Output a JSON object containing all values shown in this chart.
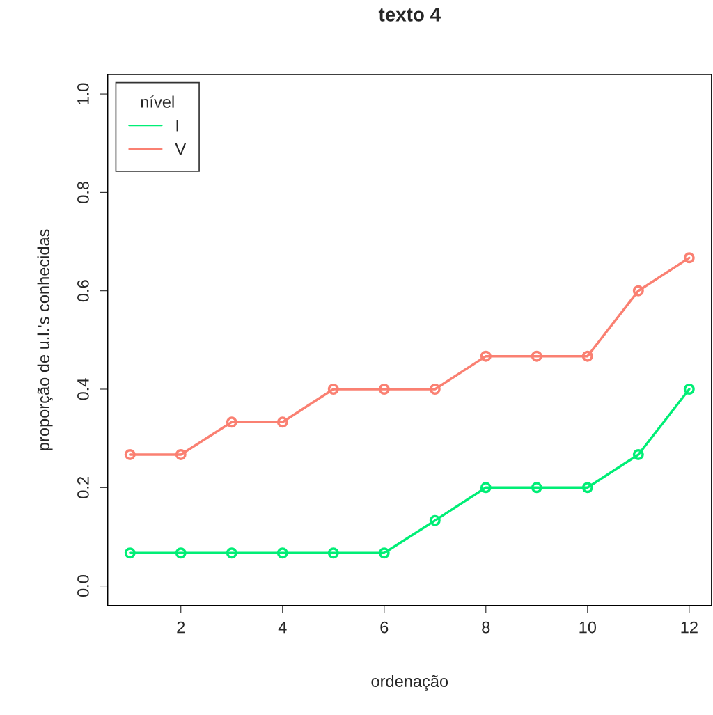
{
  "chart_data": {
    "type": "line",
    "title": "texto 4",
    "xlabel": "ordenação",
    "ylabel": "proporção de u.l.'s conhecidas",
    "legend_title": "nível",
    "x": [
      1,
      2,
      3,
      4,
      5,
      6,
      7,
      8,
      9,
      10,
      11,
      12
    ],
    "series": [
      {
        "name": "I",
        "color": "#00ee76",
        "values": [
          0.067,
          0.067,
          0.067,
          0.067,
          0.067,
          0.067,
          0.133,
          0.2,
          0.2,
          0.2,
          0.267,
          0.4
        ]
      },
      {
        "name": "V",
        "color": "#fa8072",
        "values": [
          0.267,
          0.267,
          0.333,
          0.333,
          0.4,
          0.4,
          0.4,
          0.467,
          0.467,
          0.467,
          0.6,
          0.667
        ]
      }
    ],
    "xlim": [
      0.56,
      12.44
    ],
    "ylim": [
      -0.04,
      1.04
    ],
    "xticks": [
      2,
      4,
      6,
      8,
      10,
      12
    ],
    "yticks": [
      {
        "value": 0,
        "label": "0.0"
      },
      0.2,
      0.4,
      0.6,
      0.8,
      {
        "value": 1,
        "label": "1.0"
      }
    ],
    "grid": false,
    "legend": "top left",
    "marker": "circle",
    "line_style": "solid"
  }
}
